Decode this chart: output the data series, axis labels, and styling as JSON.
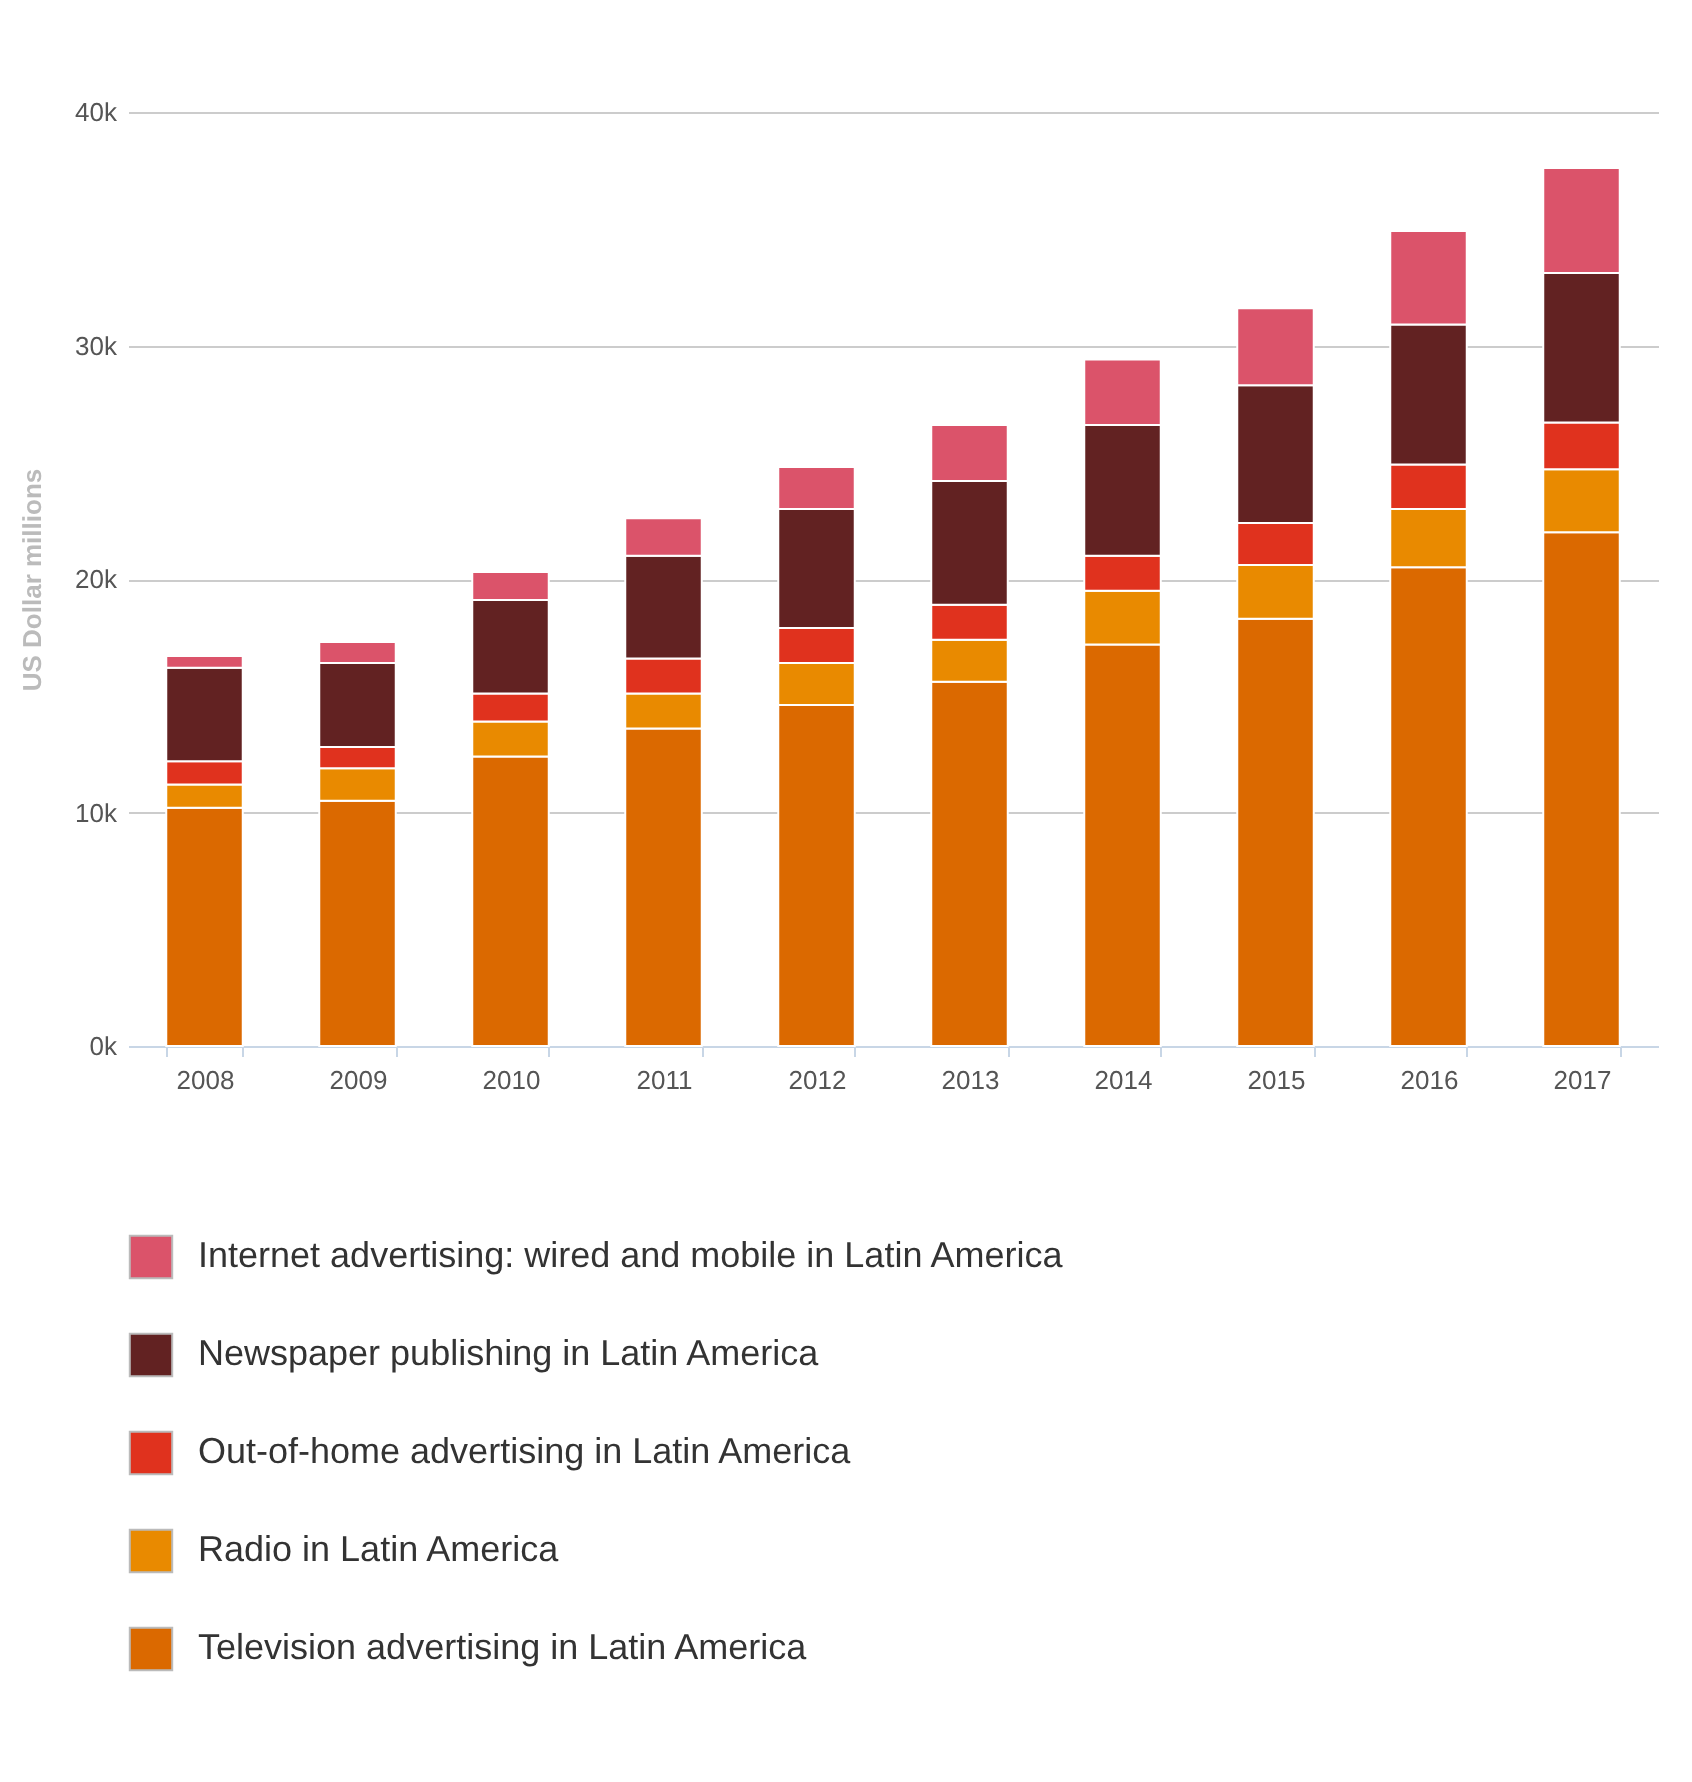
{
  "chart_data": {
    "type": "bar",
    "stacked": true,
    "ylabel": "US Dollar millions",
    "categories": [
      "2008",
      "2009",
      "2010",
      "2011",
      "2012",
      "2013",
      "2014",
      "2015",
      "2016",
      "2017"
    ],
    "series": [
      {
        "name": "Television advertising in Latin America",
        "color": "#db6900",
        "values": [
          10200,
          10500,
          12400,
          13600,
          14600,
          15600,
          17200,
          18300,
          20500,
          22000
        ]
      },
      {
        "name": "Radio in Latin America",
        "color": "#e98a00",
        "values": [
          1000,
          1400,
          1500,
          1500,
          1800,
          1800,
          2300,
          2300,
          2500,
          2700
        ]
      },
      {
        "name": "Out-of-home advertising in Latin America",
        "color": "#e0321e",
        "values": [
          1000,
          900,
          1200,
          1500,
          1500,
          1500,
          1500,
          1800,
          1900,
          2000
        ]
      },
      {
        "name": "Newspaper publishing in Latin America",
        "color": "#622222",
        "values": [
          4000,
          3600,
          4000,
          4400,
          5100,
          5300,
          5600,
          5900,
          6000,
          6400
        ]
      },
      {
        "name": "Internet advertising: wired and mobile in Latin America",
        "color": "#db536a",
        "values": [
          500,
          900,
          1200,
          1600,
          1800,
          2400,
          2800,
          3300,
          4000,
          4500
        ]
      }
    ],
    "ylim": [
      0,
      40000
    ],
    "yticks": [
      {
        "value": 0,
        "label": "0k"
      },
      {
        "value": 10000,
        "label": "10k"
      },
      {
        "value": 20000,
        "label": "20k"
      },
      {
        "value": 30000,
        "label": "30k"
      },
      {
        "value": 40000,
        "label": "40k"
      }
    ],
    "grid": "y",
    "legend": "bottom"
  }
}
